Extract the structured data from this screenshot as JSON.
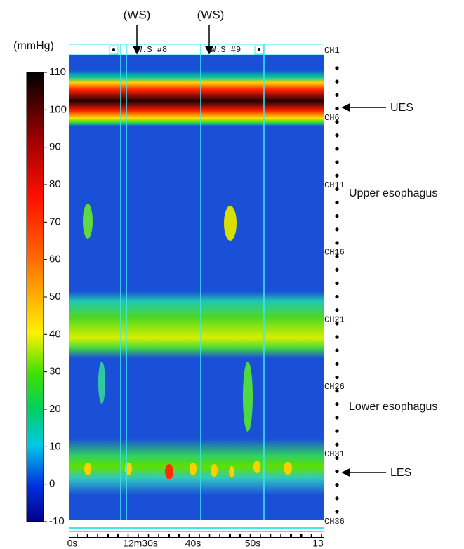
{
  "figure": {
    "unit_label": "(mmHg)",
    "colorbar": {
      "lim": [
        -10,
        110
      ],
      "ticks": [
        -10,
        0,
        10,
        20,
        30,
        40,
        50,
        60,
        70,
        80,
        90,
        100,
        110
      ]
    },
    "swallow_labels": [
      "(WS)",
      "(WS)"
    ],
    "event_labels": [
      "W.S #8",
      "W.S #9"
    ],
    "channels": [
      "CH1",
      "CH6",
      "CH11",
      "CH16",
      "CH21",
      "CH26",
      "CH31",
      "CH36"
    ],
    "time_labels": [
      "0s",
      "12m30s",
      "40s",
      "50s",
      "13"
    ],
    "annotations": {
      "ues": "UES",
      "upper": "Upper esophagus",
      "lower": "Lower esophagus",
      "les": "LES"
    }
  }
}
